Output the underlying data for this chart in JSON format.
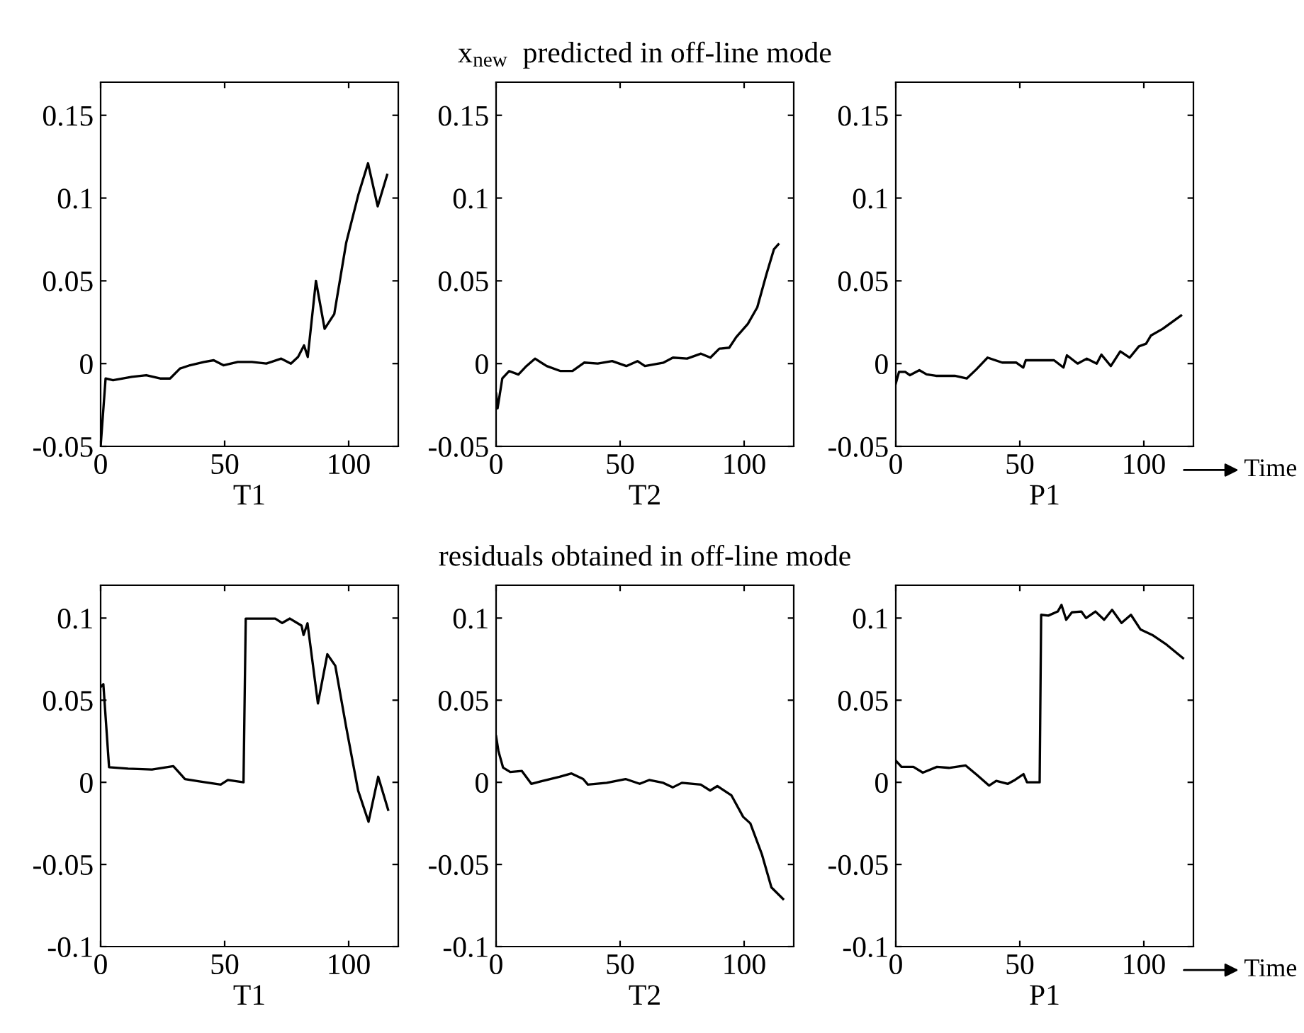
{
  "chart_data": [
    {
      "type": "line",
      "xlabel": "T1",
      "xlim": [
        0,
        120
      ],
      "ylim": [
        -0.05,
        0.17
      ],
      "xticks": [
        0,
        50,
        100
      ],
      "yticks": [
        -0.05,
        0,
        0.05,
        0.1,
        0.15
      ],
      "grid": false,
      "line_style": "solid",
      "marker": "none",
      "series": [
        {
          "color": "#000000",
          "x": [
            0,
            2,
            5,
            12.6,
            18.4,
            24,
            28,
            32,
            36,
            41.7,
            45.6,
            49.5,
            55.3,
            61,
            66.8,
            72.8,
            76.7,
            79.6,
            82,
            83.5,
            86.8,
            90.3,
            94.2,
            99,
            103.9,
            107.8,
            111.7,
            115.5
          ],
          "values": [
            -0.05,
            -0.009,
            -0.01,
            -0.008,
            -0.007,
            -0.009,
            -0.009,
            -0.003,
            -0.001,
            0.001,
            0.002,
            -0.001,
            0.001,
            0.001,
            0,
            0.003,
            0,
            0.004,
            0.011,
            0.004,
            0.05,
            0.021,
            0.03,
            0.073,
            0.102,
            0.121,
            0.095,
            0.114
          ]
        }
      ]
    },
    {
      "type": "line",
      "title": "x$_{new}$  predicted in off-line mode",
      "xlabel": "T2",
      "xlim": [
        0,
        120
      ],
      "ylim": [
        -0.05,
        0.17
      ],
      "xticks": [
        0,
        50,
        100
      ],
      "yticks": [
        -0.05,
        0,
        0.05,
        0.1,
        0.15
      ],
      "grid": false,
      "line_style": "solid",
      "marker": "none",
      "series": [
        {
          "color": "#000000",
          "x": [
            0,
            0.6,
            2.5,
            5.3,
            9,
            11.9,
            15.7,
            20.4,
            26,
            30.8,
            35.5,
            41,
            46.8,
            52.5,
            57,
            60,
            67.5,
            71.3,
            77,
            82.6,
            86.4,
            90,
            94,
            96.8,
            101.5,
            105.3,
            109,
            112,
            113.8
          ],
          "values": [
            -0.018,
            -0.027,
            -0.009,
            -0.0045,
            -0.0066,
            -0.002,
            0.003,
            -0.0015,
            -0.0045,
            -0.0045,
            0.0006,
            0,
            0.0015,
            -0.0015,
            0.0015,
            -0.0015,
            0.0006,
            0.0036,
            0.003,
            0.006,
            0.0036,
            0.009,
            0.0096,
            0.016,
            0.024,
            0.034,
            0.054,
            0.069,
            0.072
          ]
        }
      ]
    },
    {
      "type": "line",
      "xlabel": "P1",
      "xlim": [
        0,
        120
      ],
      "ylim": [
        -0.05,
        0.17
      ],
      "xticks": [
        0,
        50,
        100
      ],
      "yticks": [
        -0.05,
        0,
        0.05,
        0.1,
        0.15
      ],
      "grid": false,
      "line_style": "solid",
      "marker": "none",
      "annotations": [
        "Time"
      ],
      "series": [
        {
          "color": "#000000",
          "x": [
            0,
            1.3,
            3.8,
            5.7,
            9.5,
            12.4,
            16.2,
            23.8,
            28.6,
            32.4,
            37,
            42.9,
            48.6,
            51.4,
            52.4,
            58,
            63.8,
            67.6,
            69,
            73.3,
            77,
            81,
            82.9,
            86.7,
            90.5,
            94.3,
            98,
            100.9,
            102.9,
            107.6,
            115
          ],
          "values": [
            -0.012,
            -0.005,
            -0.005,
            -0.007,
            -0.004,
            -0.0065,
            -0.0074,
            -0.0074,
            -0.009,
            -0.0036,
            0.0036,
            0.0006,
            0.0006,
            -0.0024,
            0.002,
            0.002,
            0.002,
            -0.0024,
            0.005,
            0,
            0.003,
            0,
            0.0054,
            -0.0015,
            0.0074,
            0.0036,
            0.0104,
            0.012,
            0.017,
            0.021,
            0.029
          ]
        }
      ]
    },
    {
      "type": "line",
      "xlabel": "T1",
      "xlim": [
        0,
        120
      ],
      "ylim": [
        -0.1,
        0.12
      ],
      "xticks": [
        0,
        50,
        100
      ],
      "yticks": [
        -0.1,
        -0.05,
        0,
        0.05,
        0.1
      ],
      "grid": false,
      "line_style": "solid",
      "marker": "none",
      "series": [
        {
          "color": "#000000",
          "x": [
            0,
            1.1,
            3.4,
            11.1,
            20.7,
            29.3,
            34,
            39.8,
            48.4,
            51.3,
            57.6,
            58.5,
            62.8,
            70.4,
            73.2,
            76.3,
            81,
            81.8,
            83.4,
            87.6,
            91.4,
            94.6,
            99,
            103.8,
            108,
            111.9,
            115.9
          ],
          "values": [
            0.058,
            0.0597,
            0.0092,
            0.0083,
            0.0078,
            0.0098,
            0.002,
            0.0006,
            -0.0014,
            0.0014,
            0,
            0.0997,
            0.0997,
            0.0997,
            0.097,
            0.0997,
            0.0954,
            0.0897,
            0.0968,
            0.048,
            0.078,
            0.071,
            0.0336,
            -0.005,
            -0.024,
            0.0034,
            -0.0167
          ]
        }
      ]
    },
    {
      "type": "line",
      "title": "residuals obtained in off-line mode",
      "xlabel": "T2",
      "xlim": [
        0,
        120
      ],
      "ylim": [
        -0.1,
        0.12
      ],
      "xticks": [
        0,
        50,
        100
      ],
      "yticks": [
        -0.1,
        -0.05,
        0,
        0.05,
        0.1
      ],
      "grid": false,
      "line_style": "solid",
      "marker": "none",
      "series": [
        {
          "color": "#000000",
          "x": [
            0,
            0.95,
            2.8,
            5.7,
            10.4,
            14.2,
            18,
            25.6,
            30.4,
            35.1,
            37,
            44.6,
            52.2,
            57.9,
            61.7,
            67.4,
            71.2,
            74.9,
            82.5,
            86.3,
            89.2,
            94.9,
            99.6,
            102.5,
            107.2,
            111,
            115.7
          ],
          "values": [
            0.028,
            0.019,
            0.009,
            0.0063,
            0.0069,
            -0.0009,
            0.0006,
            0.0034,
            0.0054,
            0.002,
            -0.0014,
            -0.0003,
            0.002,
            -0.0009,
            0.0014,
            -0.0003,
            -0.0031,
            -0.0003,
            -0.0014,
            -0.005,
            -0.0023,
            -0.008,
            -0.021,
            -0.025,
            -0.044,
            -0.064,
            -0.071
          ]
        }
      ]
    },
    {
      "type": "line",
      "xlabel": "P1",
      "xlim": [
        0,
        120
      ],
      "ylim": [
        -0.1,
        0.12
      ],
      "xticks": [
        0,
        50,
        100
      ],
      "yticks": [
        -0.1,
        -0.05,
        0,
        0.05,
        0.1
      ],
      "grid": false,
      "line_style": "solid",
      "marker": "none",
      "annotations": [
        "Time"
      ],
      "series": [
        {
          "color": "#000000",
          "x": [
            0,
            2.3,
            7.1,
            10.9,
            16.6,
            21.4,
            28.1,
            32.8,
            37.6,
            40.5,
            45.2,
            48.1,
            51.5,
            52.9,
            58,
            58.6,
            61.5,
            65.3,
            66.8,
            68.7,
            71,
            74.8,
            76.7,
            80.5,
            84,
            87.2,
            91,
            94.8,
            98.7,
            103.4,
            109.2,
            115.8
          ],
          "values": [
            0.0132,
            0.0094,
            0.0094,
            0.0059,
            0.0094,
            0.0088,
            0.0103,
            0.0044,
            -0.002,
            0.0009,
            -0.0009,
            0.0015,
            0.005,
            0,
            0,
            0.102,
            0.1015,
            0.104,
            0.108,
            0.099,
            0.1035,
            0.104,
            0.1,
            0.104,
            0.099,
            0.105,
            0.097,
            0.102,
            0.093,
            0.0897,
            0.0838,
            0.0756
          ]
        }
      ]
    }
  ]
}
